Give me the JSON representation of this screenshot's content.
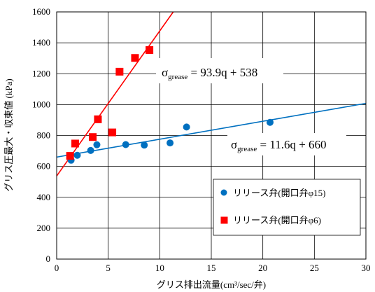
{
  "chart_data": {
    "type": "scatter",
    "xlabel": "グリス排出流量(cm³/sec/弁)",
    "ylabel": "グリス圧最大・収束値 (kPa)",
    "xlim": [
      0,
      30
    ],
    "ylim": [
      0,
      1600
    ],
    "x_ticks": [
      0,
      5,
      10,
      15,
      20,
      25,
      30
    ],
    "y_ticks": [
      0,
      200,
      400,
      600,
      800,
      1000,
      1200,
      1400,
      1600
    ],
    "grid": true,
    "legend_position": "bottom-right",
    "series": [
      {
        "name": "リリース弁(開口弁φ15)",
        "marker": "circle",
        "color": "#0070C0",
        "points": [
          {
            "x": 1.4,
            "y": 640
          },
          {
            "x": 2.0,
            "y": 672
          },
          {
            "x": 3.3,
            "y": 703
          },
          {
            "x": 3.9,
            "y": 740
          },
          {
            "x": 6.7,
            "y": 741
          },
          {
            "x": 8.5,
            "y": 738
          },
          {
            "x": 11.0,
            "y": 752
          },
          {
            "x": 12.6,
            "y": 855
          },
          {
            "x": 20.7,
            "y": 885
          }
        ],
        "fit": {
          "slope": 11.6,
          "intercept": 660,
          "color": "#0070C0"
        }
      },
      {
        "name": "リリース弁(開口弁φ6)",
        "marker": "square",
        "color": "#FF0000",
        "points": [
          {
            "x": 1.3,
            "y": 668
          },
          {
            "x": 1.8,
            "y": 748
          },
          {
            "x": 3.5,
            "y": 790
          },
          {
            "x": 4.0,
            "y": 905
          },
          {
            "x": 5.4,
            "y": 820
          },
          {
            "x": 6.1,
            "y": 1213
          },
          {
            "x": 7.6,
            "y": 1302
          },
          {
            "x": 9.0,
            "y": 1353
          }
        ],
        "fit": {
          "slope": 93.9,
          "intercept": 538,
          "color": "#FF0000"
        }
      }
    ],
    "annotations": [
      {
        "sigma": "σ",
        "sub": "grease",
        "rhs": " = 93.9q + 538"
      },
      {
        "sigma": "σ",
        "sub": "grease",
        "rhs": " = 11.6q + 660"
      }
    ]
  }
}
